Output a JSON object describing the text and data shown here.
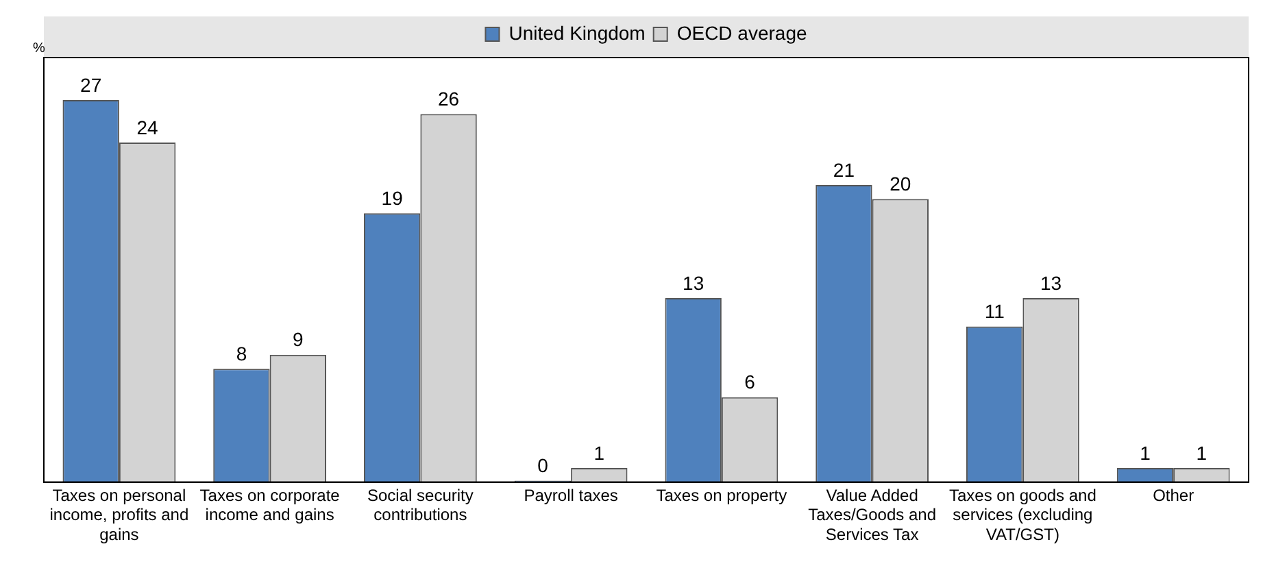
{
  "chart_data": {
    "type": "bar",
    "ylabel": "%",
    "categories": [
      "Taxes on personal income, profits and gains",
      "Taxes on corporate income and gains",
      "Social security contributions",
      "Payroll taxes",
      "Taxes on property",
      "Value Added Taxes/Goods and Services Tax",
      "Taxes on goods and services (excluding VAT/GST)",
      "Other"
    ],
    "series": [
      {
        "name": "United Kingdom",
        "color": "#4f81bd",
        "values": [
          27,
          8,
          19,
          0,
          13,
          21,
          11,
          1
        ]
      },
      {
        "name": "OECD average",
        "color": "#d3d3d3",
        "values": [
          24,
          9,
          26,
          1,
          6,
          20,
          13,
          1
        ]
      }
    ],
    "data_labels": true,
    "legend": "top",
    "grid": false
  }
}
